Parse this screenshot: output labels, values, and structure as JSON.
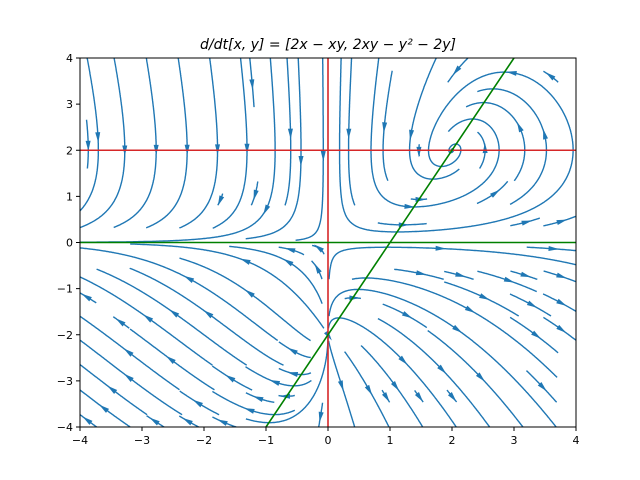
{
  "chart_data": {
    "type": "streamplot",
    "title": "d/dt[x, y] = [2x − xy, 2xy − y² − 2y]",
    "xlabel": "",
    "ylabel": "",
    "xlim": [
      -4,
      4
    ],
    "ylim": [
      -4,
      4
    ],
    "xticks": [
      -4,
      -3,
      -2,
      -1,
      0,
      1,
      2,
      3,
      4
    ],
    "yticks": [
      -4,
      -3,
      -2,
      -1,
      0,
      1,
      2,
      3,
      4
    ],
    "grid": false,
    "vector_field": {
      "dx": "2x - x*y",
      "dy": "2*x*y - y^2 - 2*y"
    },
    "stream_color": "#1f77b4",
    "nullclines": [
      {
        "kind": "x-nullcline",
        "equation": "x = 0",
        "color": "#d62728",
        "points": [
          [
            0,
            -4
          ],
          [
            0,
            4
          ]
        ]
      },
      {
        "kind": "x-nullcline",
        "equation": "y = 2",
        "color": "#d62728",
        "points": [
          [
            -4,
            2
          ],
          [
            4,
            2
          ]
        ]
      },
      {
        "kind": "y-nullcline",
        "equation": "y = 0",
        "color": "#008000",
        "points": [
          [
            -4,
            0
          ],
          [
            4,
            0
          ]
        ]
      },
      {
        "kind": "y-nullcline",
        "equation": "y = 2x - 2",
        "color": "#008000",
        "points": [
          [
            -1,
            -4
          ],
          [
            3,
            4
          ]
        ]
      }
    ]
  }
}
